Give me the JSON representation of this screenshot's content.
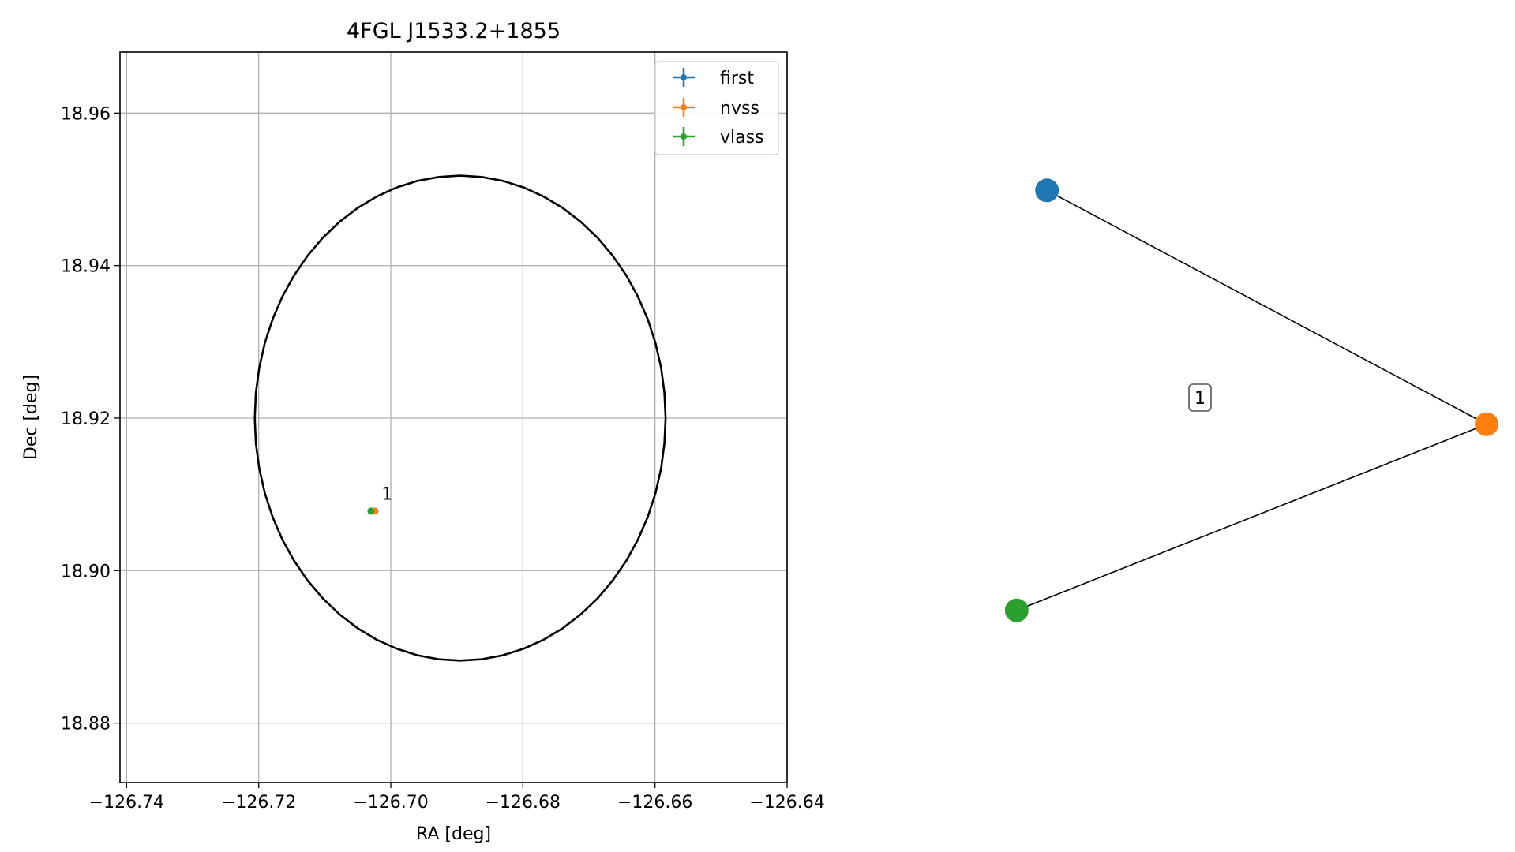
{
  "chart_data": [
    {
      "type": "scatter",
      "title": "4FGL J1533.2+1855",
      "xlabel": "RA [deg]",
      "ylabel": "Dec [deg]",
      "xlim": [
        -126.741,
        -126.64
      ],
      "ylim": [
        18.8722,
        18.968
      ],
      "xticks": [
        -126.74,
        -126.72,
        -126.7,
        -126.68,
        -126.66,
        -126.64
      ],
      "xtick_labels": [
        "−126.74",
        "−126.72",
        "−126.70",
        "−126.68",
        "−126.66",
        "−126.64"
      ],
      "yticks": [
        18.88,
        18.9,
        18.92,
        18.94,
        18.96
      ],
      "ytick_labels": [
        "18.88",
        "18.90",
        "18.92",
        "18.94",
        "18.96"
      ],
      "grid": true,
      "legend_position": "top-right",
      "series": [
        {
          "name": "first",
          "color": "#1f77b4",
          "points": []
        },
        {
          "name": "nvss",
          "color": "#ff7f0e",
          "points": [
            {
              "x": -126.7024,
              "y": 18.9078
            }
          ]
        },
        {
          "name": "vlass",
          "color": "#2ca02c",
          "points": [
            {
              "x": -126.703,
              "y": 18.9078
            }
          ]
        }
      ],
      "ellipse": {
        "center": [
          -126.6895,
          18.92
        ],
        "semi_x": 0.0311,
        "semi_y": 0.0318,
        "color": "#000000"
      },
      "annotations": [
        {
          "text": "1",
          "x": -126.7014,
          "y": 18.9093
        }
      ]
    },
    {
      "type": "network",
      "nodes": [
        {
          "id": "first",
          "color": "#1f77b4",
          "x": 0.13,
          "y": 0.94
        },
        {
          "id": "nvss",
          "color": "#ff7f0e",
          "x": 1.0,
          "y": 0.45
        },
        {
          "id": "vlass",
          "color": "#2ca02c",
          "x": 0.07,
          "y": 0.06
        }
      ],
      "edges": [
        [
          "first",
          "nvss"
        ],
        [
          "nvss",
          "vlass"
        ]
      ],
      "edge_label": "1"
    }
  ]
}
